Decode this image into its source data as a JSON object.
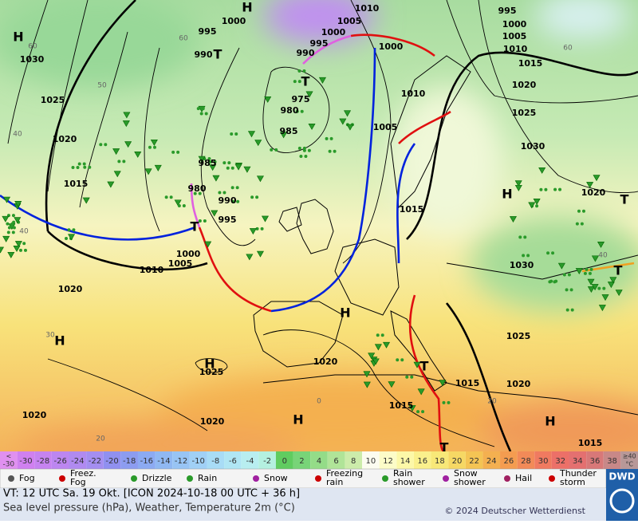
{
  "map": {
    "isobar_labels": [
      "1000",
      "995",
      "990",
      "1005",
      "1010",
      "995",
      "1000",
      "990",
      "975",
      "980",
      "985",
      "1000",
      "1010",
      "1005",
      "985",
      "980",
      "990",
      "995",
      "1000",
      "1005",
      "1010",
      "1030",
      "1025",
      "1020",
      "1015",
      "1020",
      "1020",
      "1025",
      "1020",
      "1020",
      "1015",
      "1015",
      "1020",
      "1025",
      "1030",
      "1030",
      "1025",
      "1020",
      "1015",
      "1010",
      "1005",
      "1000",
      "995",
      "1020",
      "1015",
      "1015"
    ],
    "centres": [
      "H",
      "H",
      "T",
      "T",
      "T",
      "H",
      "H",
      "H",
      "H",
      "H",
      "T",
      "T",
      "T",
      "T",
      "H"
    ],
    "graticule_labels": [
      "60",
      "60",
      "60",
      "50",
      "40",
      "40",
      "30",
      "20",
      "20",
      "0",
      "40"
    ]
  },
  "scale": {
    "first": {
      "top": "<",
      "bottom": "-30"
    },
    "last": {
      "top": "≥40",
      "bottom": "°C"
    },
    "cells": [
      {
        "label": "-30",
        "color": "#d080f0"
      },
      {
        "label": "-28",
        "color": "#c683f0"
      },
      {
        "label": "-26",
        "color": "#bc86f0"
      },
      {
        "label": "-24",
        "color": "#b08af0"
      },
      {
        "label": "-22",
        "color": "#a48ef0"
      },
      {
        "label": "-20",
        "color": "#9090f0"
      },
      {
        "label": "-18",
        "color": "#8c9cf0"
      },
      {
        "label": "-16",
        "color": "#8caaf2"
      },
      {
        "label": "-14",
        "color": "#90b8f2"
      },
      {
        "label": "-12",
        "color": "#98c4f4"
      },
      {
        "label": "-10",
        "color": "#a0d0f6"
      },
      {
        "label": "-8",
        "color": "#a8dcf6"
      },
      {
        "label": "-6",
        "color": "#b0e6f4"
      },
      {
        "label": "-4",
        "color": "#b8eef0"
      },
      {
        "label": "-2",
        "color": "#b4f0e0"
      },
      {
        "label": "0",
        "color": "#60cc60"
      },
      {
        "label": "2",
        "color": "#78d478"
      },
      {
        "label": "4",
        "color": "#94dc88"
      },
      {
        "label": "6",
        "color": "#b0e498"
      },
      {
        "label": "8",
        "color": "#ccecaa"
      },
      {
        "label": "10",
        "color": "#fcfcf0"
      },
      {
        "label": "12",
        "color": "#fcfcc8"
      },
      {
        "label": "14",
        "color": "#fcf8a8"
      },
      {
        "label": "16",
        "color": "#faf08c"
      },
      {
        "label": "18",
        "color": "#f8e878"
      },
      {
        "label": "20",
        "color": "#f6d864"
      },
      {
        "label": "22",
        "color": "#f4c454"
      },
      {
        "label": "24",
        "color": "#f4b050"
      },
      {
        "label": "26",
        "color": "#f49c50"
      },
      {
        "label": "28",
        "color": "#f28a58"
      },
      {
        "label": "30",
        "color": "#f07a60"
      },
      {
        "label": "32",
        "color": "#ec7068"
      },
      {
        "label": "34",
        "color": "#e47070"
      },
      {
        "label": "36",
        "color": "#d87878"
      },
      {
        "label": "38",
        "color": "#c88888"
      }
    ]
  },
  "symbols": {
    "fog": "Fog",
    "freez_fog": "Freez.\nFog",
    "drizzle": "Drizzle",
    "rain": "Rain",
    "snow": "Snow",
    "freezing_rain": "Freezing\nrain",
    "rain_shower": "Rain\nshower",
    "snow_shower": "Snow\nshower",
    "hail": "Hail",
    "thunderstorm": "Thunder\nstorm"
  },
  "footer": {
    "valid": "VT: 12 UTC Sa.  19 Okt. [ICON 2024-10-18  00 UTC + 36 h]",
    "subtitle": "Sea level pressure (hPa), Weather, Temperature 2m (°C)",
    "copyright": "© 2024 Deutscher Wetterdienst",
    "logo": "DWD"
  }
}
